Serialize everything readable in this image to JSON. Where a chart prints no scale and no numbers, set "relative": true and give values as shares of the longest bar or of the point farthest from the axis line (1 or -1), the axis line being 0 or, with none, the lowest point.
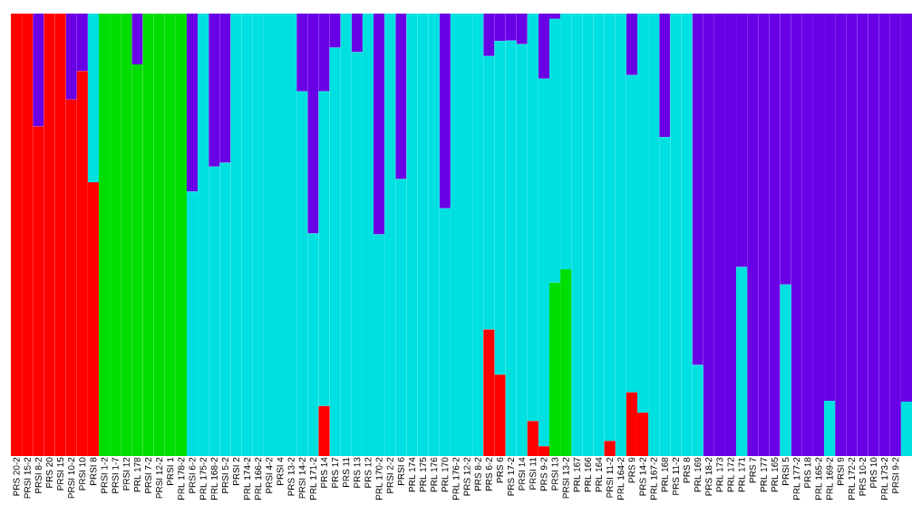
{
  "chart_data": {
    "type": "bar",
    "stacked": true,
    "relative": true,
    "categories": [
      "PRS 20-2",
      "PRSI 15-2",
      "PRSI 8-2",
      "PRS 20",
      "PRSI 15",
      "PRSI 10-2",
      "PRSI 10",
      "PRSI 8",
      "PRSI 1-2",
      "PRSI 1-7",
      "PRSI 12",
      "PRL 178",
      "PRSI 7-2",
      "PRSI 12-2",
      "PRSI 1",
      "PRL 178-2",
      "PRSI 6-2",
      "PRL 175-2",
      "PRL 168-2",
      "PRSI 5-2",
      "PRSI 2",
      "PRL 174-2",
      "PRL 166-2",
      "PRSI 4-2",
      "PRSI 4",
      "PRS 13-2",
      "PRSI 14-2",
      "PRL 171-2",
      "PRS 14",
      "PRS 17",
      "PRS 11",
      "PRS 13",
      "PRS 12",
      "PRL 170-2",
      "PRSI 2-2",
      "PRSI 6",
      "PRL 174",
      "PRL 175",
      "PRL 176",
      "PRL 170",
      "PRL 176-2",
      "PRS 12-2",
      "PRS 8-2",
      "PRS 6-2",
      "PRS 6",
      "PRS 17-2",
      "PRSI 14",
      "PRSI 11",
      "PRS 9-2",
      "PRSI 13",
      "PRSI 13-2",
      "PRL 167",
      "PRL 166",
      "PRL 164",
      "PRSI 11-2",
      "PRL 164-2",
      "PRS 9",
      "PRS 14-2",
      "PRL 167-2",
      "PRL 168",
      "PRS 11-2",
      "PRS 8",
      "PRL 169",
      "PRS 18-2",
      "PRL 173",
      "PRL 172",
      "PRL 171",
      "PRS 7",
      "PRL 177",
      "PRL 165",
      "PRSI 5",
      "PRL 177-2",
      "PRS 18",
      "PRL 165-2",
      "PRL 169-2",
      "PRSI 9",
      "PRL 172-2",
      "PRS 10-2",
      "PRS 10",
      "PRL 173-2",
      "PRSI 9-2",
      null
    ],
    "series": [
      {
        "color": "#ff0000",
        "values": [
          1,
          1,
          0.745,
          1,
          1,
          0.806,
          0.87,
          0.619,
          0,
          0,
          0,
          0,
          0,
          0,
          0,
          0,
          0,
          0,
          0,
          0,
          0,
          0,
          0,
          0,
          0,
          0,
          0,
          0,
          0.113,
          0,
          0,
          0,
          0,
          0,
          0,
          0,
          0,
          0,
          0,
          0,
          0,
          0,
          0,
          0.286,
          0.184,
          0,
          0,
          0.079,
          0.022,
          0,
          0,
          0,
          0,
          0,
          0.034,
          0,
          0.144,
          0.098,
          0,
          0,
          0,
          0,
          0,
          0,
          0,
          0,
          0,
          0,
          0,
          0,
          0,
          0,
          0,
          0,
          0,
          0,
          0,
          0,
          0,
          0,
          0,
          0
        ]
      },
      {
        "color": "#00dd00",
        "values": [
          0,
          0,
          0,
          0,
          0,
          0,
          0,
          0,
          1,
          1,
          1,
          0.885,
          1,
          1,
          1,
          1,
          0,
          0,
          0,
          0,
          0,
          0,
          0,
          0,
          0,
          0,
          0,
          0,
          0,
          0,
          0,
          0,
          0,
          0,
          0,
          0,
          0,
          0,
          0,
          0,
          0,
          0,
          0,
          0,
          0,
          0,
          0,
          0,
          0,
          0.392,
          0.422,
          0,
          0,
          0,
          0,
          0,
          0,
          0,
          0,
          0,
          0,
          0,
          0,
          0,
          0,
          0,
          0,
          0,
          0,
          0,
          0,
          0,
          0,
          0,
          0,
          0,
          0,
          0,
          0,
          0,
          0,
          0
        ]
      },
      {
        "color": "#00e0e0",
        "values": [
          0,
          0,
          0,
          0,
          0,
          0,
          0,
          0.381,
          0,
          0,
          0,
          0,
          0,
          0,
          0,
          0,
          0.598,
          1,
          0.654,
          0.663,
          1,
          1,
          1,
          1,
          1,
          1,
          0.824,
          0.503,
          0.711,
          0.923,
          1,
          0.913,
          1,
          0.501,
          1,
          0.626,
          1,
          1,
          1,
          0.56,
          1,
          1,
          1,
          0.618,
          0.754,
          0.939,
          0.931,
          0.921,
          0.831,
          0.596,
          0.578,
          1,
          1,
          1,
          0.966,
          1,
          0.717,
          0.902,
          1,
          0.721,
          1,
          1,
          0.206,
          0,
          0,
          0,
          0.427,
          0,
          0,
          0,
          0.388,
          0,
          0,
          0,
          0.125,
          0,
          0,
          0,
          0,
          0,
          0,
          0.123
        ]
      },
      {
        "color": "#6a00e6",
        "values": [
          0,
          0,
          0.255,
          0,
          0,
          0.194,
          0.13,
          0,
          0,
          0,
          0,
          0.115,
          0,
          0,
          0,
          0,
          0.402,
          0,
          0.346,
          0.337,
          0,
          0,
          0,
          0,
          0,
          0,
          0.176,
          0.497,
          0.176,
          0.077,
          0,
          0.087,
          0,
          0.499,
          0,
          0.374,
          0,
          0,
          0,
          0.44,
          0,
          0,
          0,
          0.096,
          0.062,
          0.061,
          0.069,
          0,
          0.147,
          0.012,
          0,
          0,
          0,
          0,
          0,
          0,
          0.139,
          0,
          0,
          0.279,
          0,
          0,
          0.794,
          1,
          1,
          1,
          0.573,
          1,
          1,
          1,
          0.612,
          1,
          1,
          1,
          0.875,
          1,
          1,
          1,
          1,
          1,
          1,
          0.877
        ]
      }
    ]
  }
}
